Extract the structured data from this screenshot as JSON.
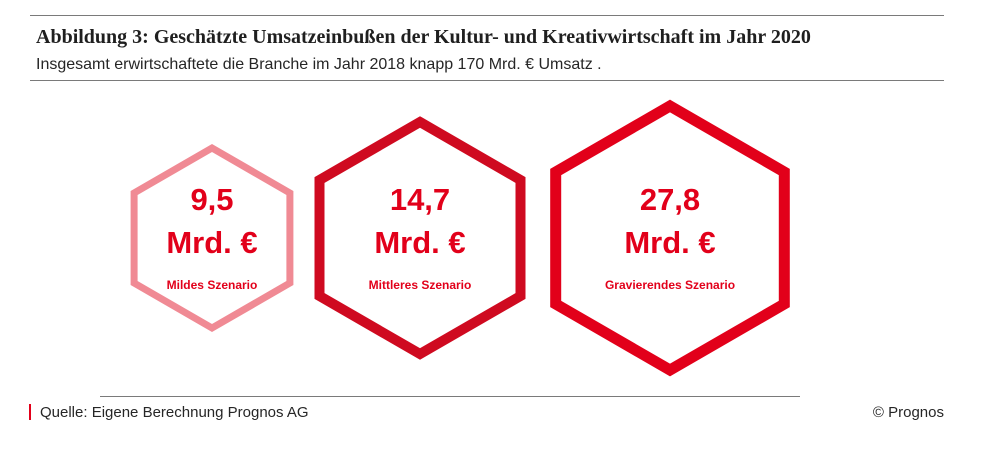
{
  "header": {
    "title": "Abbildung 3: Geschätzte Umsatzeinbußen der Kultur- und Kreativwirtschaft im Jahr 2020",
    "subtitle": "Insgesamt erwirtschaftete die Branche im Jahr 2018 knapp 170 Mrd. € Umsatz ."
  },
  "chart_data": {
    "type": "other",
    "shape": "hexagon",
    "unit": "Mrd. €",
    "items": [
      {
        "value_label": "9,5",
        "value": 9.5,
        "unit_label": "Mrd. €",
        "label": "Mildes Szenario",
        "stroke": "#f08a94"
      },
      {
        "value_label": "14,7",
        "value": 14.7,
        "unit_label": "Mrd. €",
        "label": "Mittleres Szenario",
        "stroke": "#cf0a20"
      },
      {
        "value_label": "27,8",
        "value": 27.8,
        "unit_label": "Mrd. €",
        "label": "Gravierendes Szenario",
        "stroke": "#e2001a"
      }
    ],
    "text_color": "#e2001a"
  },
  "footer": {
    "source": "Quelle: Eigene Berechnung Prognos AG",
    "copyright": "© Prognos"
  }
}
